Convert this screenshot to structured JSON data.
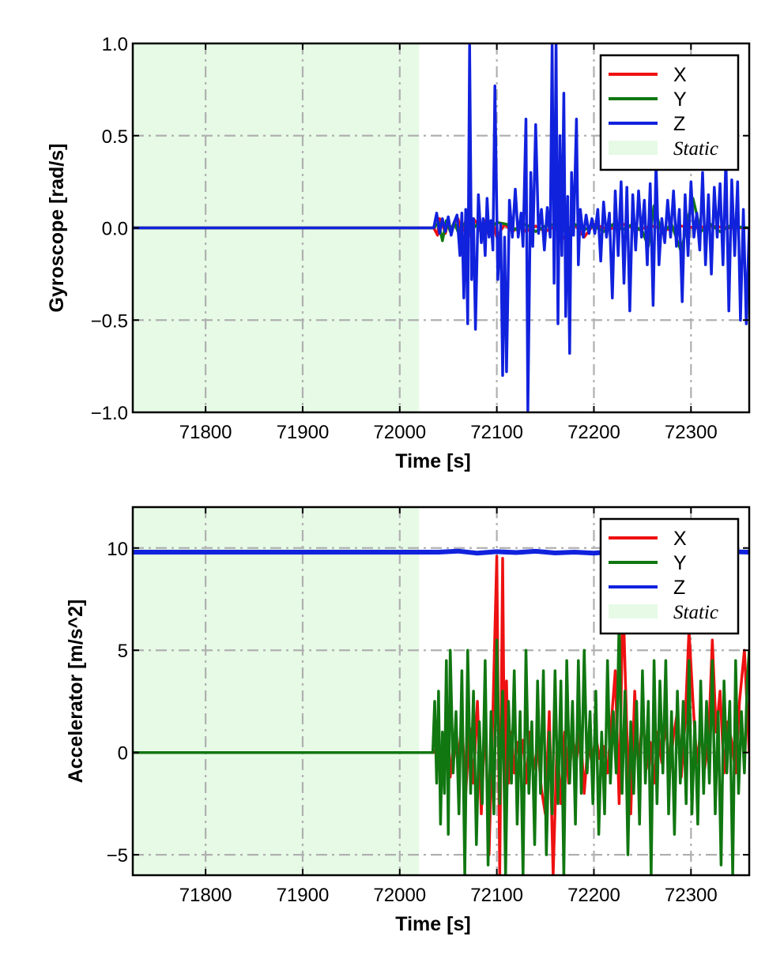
{
  "chart_data": [
    {
      "type": "line",
      "xlabel": "Time [s]",
      "ylabel": "Gyroscope [rad/s]",
      "xlim": [
        71725,
        72360
      ],
      "ylim": [
        -1.0,
        1.0
      ],
      "xticks": [
        71800,
        71900,
        72000,
        72100,
        72200,
        72300
      ],
      "xtick_labels": [
        "71800",
        "71900",
        "72000",
        "72100",
        "72200",
        "72300"
      ],
      "yticks": [
        -1.0,
        -0.5,
        0.0,
        0.5,
        1.0
      ],
      "ytick_labels": [
        "−1.0",
        "−0.5",
        "0.0",
        "0.5",
        "1.0"
      ],
      "grid": true,
      "legend_position": "top-right",
      "static_region": {
        "x": [
          71725,
          72020
        ],
        "label": "Static",
        "color": "#e6fae6"
      },
      "series": [
        {
          "name": "X",
          "color": "#ee1111",
          "x": [
            71725,
            72035,
            72039,
            72041,
            72044,
            72047,
            72050,
            72053,
            72056,
            72060,
            72064,
            72068,
            72072,
            72076,
            72080,
            72084,
            72088,
            72092,
            72096,
            72100,
            72108,
            72116,
            72124,
            72130,
            72140,
            72150,
            72160,
            72170,
            72180,
            72190,
            72200,
            72215,
            72230,
            72245,
            72260,
            72275,
            72290,
            72305,
            72320,
            72340,
            72360
          ],
          "values": [
            0,
            0,
            -0.04,
            0.05,
            0.02,
            -0.03,
            0.04,
            -0.02,
            0.03,
            0.05,
            -0.03,
            0.04,
            -0.04,
            0.05,
            0.02,
            -0.03,
            0.04,
            -0.04,
            0.03,
            -0.05,
            0.02,
            -0.02,
            0.01,
            -0.02,
            0.01,
            -0.02,
            0.01,
            -0.06,
            0.02,
            -0.05,
            0.02,
            -0.01,
            0.02,
            -0.01,
            0.01,
            -0.01,
            0.01,
            0,
            0.01,
            0,
            0
          ]
        },
        {
          "name": "Y",
          "color": "#117711",
          "x": [
            71725,
            72035,
            72040,
            72044,
            72048,
            72052,
            72056,
            72060,
            72066,
            72072,
            72080,
            72090,
            72100,
            72110,
            72120,
            72130,
            72140,
            72150,
            72160,
            72170,
            72180,
            72190,
            72200,
            72210,
            72220,
            72230,
            72240,
            72250,
            72256,
            72262,
            72270,
            72280,
            72290,
            72296,
            72302,
            72310,
            72320,
            72330,
            72340,
            72360
          ],
          "values": [
            0,
            0,
            0.03,
            -0.07,
            0.04,
            -0.02,
            0.03,
            -0.02,
            0.02,
            -0.02,
            0.02,
            -0.02,
            0.03,
            0.02,
            -0.01,
            0.02,
            -0.02,
            0.01,
            0.02,
            -0.02,
            0.02,
            -0.01,
            0.01,
            -0.02,
            0.02,
            -0.01,
            0.02,
            -0.02,
            -0.1,
            0.12,
            -0.03,
            0.02,
            -0.13,
            0.03,
            0.16,
            -0.02,
            0.02,
            -0.02,
            0.01,
            0
          ]
        },
        {
          "name": "Z",
          "color": "#1122dd",
          "x": [
            71725,
            72020,
            72035,
            72038,
            72041,
            72044,
            72047,
            72050,
            72053,
            72056,
            72059,
            72062,
            72064,
            72066,
            72068,
            72070,
            72072,
            72074,
            72076,
            72078,
            72081,
            72084,
            72086,
            72088,
            72090,
            72092,
            72094,
            72096,
            72098,
            72101,
            72104,
            72106,
            72108,
            72110,
            72113,
            72116,
            72119,
            72122,
            72125,
            72127,
            72130,
            72132,
            72135,
            72137,
            72140,
            72143,
            72146,
            72149,
            72152,
            72155,
            72157,
            72159,
            72161,
            72163,
            72165,
            72167,
            72169,
            72171,
            72173,
            72175,
            72177,
            72179,
            72182,
            72184,
            72186,
            72189,
            72192,
            72195,
            72198,
            72201,
            72204,
            72207,
            72210,
            72213,
            72216,
            72219,
            72222,
            72225,
            72228,
            72231,
            72234,
            72237,
            72240,
            72243,
            72246,
            72249,
            72252,
            72255,
            72258,
            72261,
            72264,
            72267,
            72270,
            72273,
            72276,
            72279,
            72282,
            72285,
            72288,
            72291,
            72294,
            72297,
            72300,
            72303,
            72306,
            72309,
            72312,
            72315,
            72318,
            72321,
            72324,
            72327,
            72330,
            72333,
            72336,
            72339,
            72342,
            72345,
            72348,
            72351,
            72354,
            72357,
            72360
          ],
          "values": [
            0,
            0,
            0,
            0.08,
            -0.03,
            0.05,
            -0.02,
            0.06,
            -0.04,
            0.03,
            0.07,
            -0.15,
            0.08,
            -0.38,
            0.1,
            -0.52,
            0.99,
            -0.28,
            0.05,
            -0.55,
            0.18,
            -0.08,
            0.05,
            -0.15,
            0.16,
            -0.05,
            0.04,
            -0.12,
            0.77,
            -0.28,
            0.02,
            -0.8,
            -0.05,
            -0.78,
            0.15,
            -0.05,
            0.21,
            -0.05,
            0.08,
            -0.1,
            0.59,
            -0.99,
            0.3,
            -0.1,
            0.56,
            -0.03,
            0.1,
            -0.12,
            0.11,
            -0.05,
            0.99,
            -0.3,
            1.0,
            -0.52,
            0.5,
            -0.15,
            0.73,
            -0.48,
            0.17,
            -0.68,
            0.3,
            -0.04,
            0.59,
            -0.2,
            0.1,
            -0.05,
            0.07,
            -0.03,
            0.05,
            -0.03,
            0.1,
            -0.18,
            0.14,
            -0.05,
            0.08,
            -0.38,
            0.2,
            -0.15,
            0.25,
            -0.3,
            0.22,
            -0.45,
            0.18,
            -0.12,
            0.2,
            -0.05,
            0.15,
            -0.2,
            0.24,
            -0.42,
            0.35,
            -0.2,
            0.05,
            -0.08,
            0.15,
            -0.05,
            0.2,
            -0.1,
            0.1,
            -0.4,
            0.18,
            -0.15,
            0.25,
            -0.05,
            0.08,
            -0.12,
            0.3,
            -0.2,
            0.18,
            -0.25,
            0.22,
            -0.05,
            0.24,
            -0.2,
            0.38,
            -0.45,
            0.26,
            -0.15,
            0.25,
            -0.5,
            0.1,
            -0.52,
            0
          ]
        }
      ]
    },
    {
      "type": "line",
      "xlabel": "Time [s]",
      "ylabel": "Accelerator [m/s^2]",
      "xlim": [
        71725,
        72360
      ],
      "ylim": [
        -6.0,
        12.0
      ],
      "xticks": [
        71800,
        71900,
        72000,
        72100,
        72200,
        72300
      ],
      "xtick_labels": [
        "71800",
        "71900",
        "72000",
        "72100",
        "72200",
        "72300"
      ],
      "yticks": [
        -5,
        0,
        5,
        10
      ],
      "ytick_labels": [
        "−5",
        "0",
        "5",
        "10"
      ],
      "grid": true,
      "legend_position": "top-right",
      "static_region": {
        "x": [
          71725,
          72020
        ],
        "label": "Static",
        "color": "#e6fae6"
      },
      "series": [
        {
          "name": "X",
          "color": "#ee1111",
          "x": [
            71725,
            72035,
            72040,
            72044,
            72048,
            72052,
            72056,
            72060,
            72064,
            72068,
            72072,
            72076,
            72080,
            72084,
            72088,
            72092,
            72096,
            72100,
            72103,
            72106,
            72108,
            72110,
            72112,
            72115,
            72118,
            72121,
            72124,
            72127,
            72130,
            72134,
            72138,
            72142,
            72146,
            72150,
            72154,
            72158,
            72162,
            72166,
            72170,
            72174,
            72178,
            72182,
            72186,
            72190,
            72194,
            72198,
            72202,
            72206,
            72210,
            72214,
            72218,
            72222,
            72226,
            72230,
            72234,
            72238,
            72242,
            72246,
            72250,
            72254,
            72258,
            72262,
            72266,
            72270,
            72274,
            72278,
            72282,
            72286,
            72290,
            72294,
            72298,
            72302,
            72306,
            72310,
            72314,
            72318,
            72322,
            72326,
            72330,
            72334,
            72338,
            72342,
            72346,
            72350,
            72355,
            72360
          ],
          "values": [
            0,
            0,
            0.3,
            -0.8,
            0.5,
            -1.2,
            0.8,
            -0.5,
            1.5,
            -2.0,
            1.2,
            -1.5,
            2.5,
            -3.0,
            1.8,
            -5.0,
            2.0,
            9.6,
            -6.0,
            9.5,
            -2.0,
            3.5,
            -1.5,
            1.0,
            -1.0,
            0.5,
            -0.3,
            0.6,
            -1.5,
            1.0,
            -0.8,
            0.3,
            -1.8,
            -3.0,
            2.0,
            -6.0,
            0.5,
            -2.5,
            1.0,
            -1.5,
            0.8,
            -0.4,
            1.2,
            -2.0,
            0.5,
            -0.5,
            0.8,
            -0.3,
            0.3,
            -1.0,
            1.5,
            4.0,
            -2.5,
            7.6,
            1.0,
            -3.0,
            3.0,
            -1.0,
            2.0,
            -0.8,
            0.5,
            -1.5,
            1.0,
            -0.5,
            1.5,
            -1.0,
            0.8,
            2.0,
            -1.2,
            1.5,
            6.0,
            2.5,
            -0.5,
            1.0,
            -0.8,
            0.5,
            5.5,
            1.0,
            3.0,
            -1.0,
            1.5,
            0.5,
            -1.0,
            2.5,
            5.0,
            0
          ]
        },
        {
          "name": "Y",
          "color": "#117711",
          "x": [
            71725,
            72034,
            72036,
            72038,
            72040,
            72042,
            72044,
            72046,
            72048,
            72050,
            72052,
            72055,
            72058,
            72061,
            72064,
            72067,
            72070,
            72073,
            72076,
            72079,
            72082,
            72085,
            72088,
            72091,
            72094,
            72097,
            72100,
            72103,
            72106,
            72109,
            72112,
            72115,
            72118,
            72121,
            72124,
            72127,
            72130,
            72133,
            72136,
            72139,
            72142,
            72145,
            72148,
            72151,
            72154,
            72157,
            72160,
            72163,
            72166,
            72169,
            72172,
            72175,
            72178,
            72181,
            72184,
            72187,
            72190,
            72193,
            72196,
            72199,
            72202,
            72205,
            72208,
            72211,
            72214,
            72217,
            72220,
            72223,
            72226,
            72229,
            72232,
            72235,
            72238,
            72241,
            72244,
            72247,
            72250,
            72253,
            72256,
            72259,
            72262,
            72265,
            72268,
            72271,
            72274,
            72277,
            72280,
            72283,
            72286,
            72289,
            72292,
            72295,
            72298,
            72301,
            72304,
            72307,
            72310,
            72313,
            72316,
            72319,
            72322,
            72325,
            72328,
            72331,
            72334,
            72337,
            72340,
            72343,
            72346,
            72349,
            72352,
            72355,
            72358,
            72360
          ],
          "values": [
            0,
            0,
            2.5,
            -1.5,
            3.0,
            -3.5,
            1.0,
            -2.0,
            4.5,
            -4.0,
            5.0,
            -1.0,
            2.0,
            -3.0,
            4.0,
            -6.0,
            5.0,
            -2.0,
            3.0,
            -4.5,
            1.5,
            -2.5,
            4.5,
            -5.5,
            2.0,
            -3.0,
            5.5,
            -2.5,
            3.0,
            -6.0,
            2.5,
            -1.5,
            4.0,
            -3.5,
            2.0,
            -6.0,
            5.0,
            -2.0,
            1.5,
            -4.5,
            3.5,
            -2.0,
            4.0,
            -5.0,
            1.0,
            -3.0,
            4.0,
            -2.5,
            3.5,
            -6.0,
            4.5,
            -1.5,
            2.5,
            -3.5,
            4.5,
            -2.0,
            5.0,
            -1.0,
            2.0,
            -2.5,
            3.0,
            -4.0,
            1.0,
            -3.0,
            4.5,
            -1.5,
            2.0,
            -1.0,
            6.5,
            -2.0,
            3.0,
            -5.0,
            1.5,
            -2.0,
            2.5,
            -3.5,
            4.0,
            -1.5,
            2.5,
            -6.0,
            4.5,
            -2.5,
            3.5,
            -1.0,
            4.5,
            -3.0,
            2.0,
            -4.0,
            3.0,
            -1.5,
            2.5,
            -2.5,
            4.5,
            -3.0,
            1.5,
            -3.5,
            3.5,
            -2.0,
            2.5,
            -1.5,
            4.5,
            -3.0,
            2.0,
            -5.5,
            3.5,
            -1.0,
            2.5,
            -6.0,
            4.5,
            -2.0,
            2.0,
            -1.0,
            3.5,
            5.0
          ]
        },
        {
          "name": "Z",
          "color": "#1122dd",
          "x": [
            71725,
            72040,
            72060,
            72080,
            72100,
            72120,
            72140,
            72160,
            72180,
            72200,
            72220,
            72240,
            72260,
            72280,
            72300,
            72320,
            72340,
            72360
          ],
          "values": [
            9.8,
            9.8,
            9.85,
            9.75,
            9.82,
            9.78,
            9.84,
            9.76,
            9.8,
            9.75,
            9.83,
            9.78,
            9.82,
            9.79,
            9.81,
            9.8,
            9.82,
            9.8
          ]
        }
      ]
    }
  ]
}
